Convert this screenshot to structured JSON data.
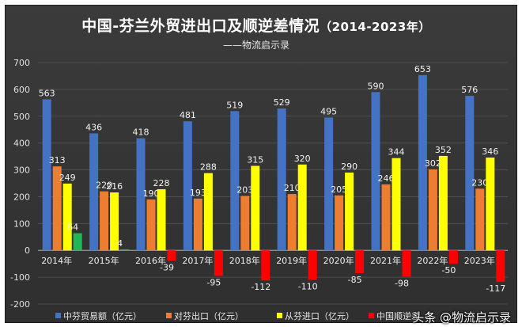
{
  "title": "中国-芬兰外贸进出口及顺逆差情况",
  "title_range": "（2014-2023年）",
  "subtitle": "——物流启示录",
  "watermark": "头条 @物流启示录",
  "colors": {
    "background": "#333333",
    "trade_total": "#4472C4",
    "export": "#ED7D31",
    "import": "#FFFF00",
    "surplus_positive": "#1DB954",
    "surplus_negative": "#FF0000"
  },
  "chart_data": {
    "type": "bar",
    "categories": [
      "2014年",
      "2015年",
      "2016年",
      "2017年",
      "2018年",
      "2019年",
      "2020年",
      "2021年",
      "2022年",
      "2023年"
    ],
    "series": [
      {
        "name": "中芬贸易额（亿元）",
        "color": "#4472C4",
        "values": [
          563,
          436,
          418,
          481,
          519,
          529,
          495,
          590,
          653,
          576
        ]
      },
      {
        "name": "对芬出口（亿元）",
        "color": "#ED7D31",
        "values": [
          313,
          220,
          190,
          193,
          203,
          210,
          205,
          246,
          302,
          230
        ]
      },
      {
        "name": "从芬进口（亿元）",
        "color": "#FFFF00",
        "values": [
          249,
          216,
          228,
          288,
          315,
          320,
          290,
          344,
          352,
          346
        ]
      },
      {
        "name": "中国顺逆差",
        "color": "#FF0000",
        "values": [
          64,
          4,
          -39,
          -95,
          -112,
          -110,
          -85,
          -98,
          -50,
          -117
        ]
      }
    ],
    "data_labels": [
      [
        "563",
        "436",
        "418",
        "481",
        "519",
        "529",
        "495",
        "590",
        "653",
        "576"
      ],
      [
        "313",
        "220",
        "190",
        "193",
        "203",
        "210",
        "205",
        "246",
        "302",
        "230"
      ],
      [
        "249",
        "216",
        "228",
        "288",
        "315",
        "320",
        "290",
        "344",
        "352",
        "346"
      ],
      [
        "64",
        "4",
        "-39",
        "-95",
        "-112",
        "-110",
        "-85",
        "-98",
        "-50",
        "-117"
      ]
    ],
    "ylim": [
      -200,
      700
    ],
    "yticks": [
      -200,
      -100,
      0,
      100,
      200,
      300,
      400,
      500,
      600,
      700
    ],
    "ytick_labels": [
      "-200",
      "-100",
      "0",
      "100",
      "200",
      "300",
      "400",
      "500",
      "600",
      "700"
    ],
    "grid": true,
    "legend_position": "bottom"
  }
}
